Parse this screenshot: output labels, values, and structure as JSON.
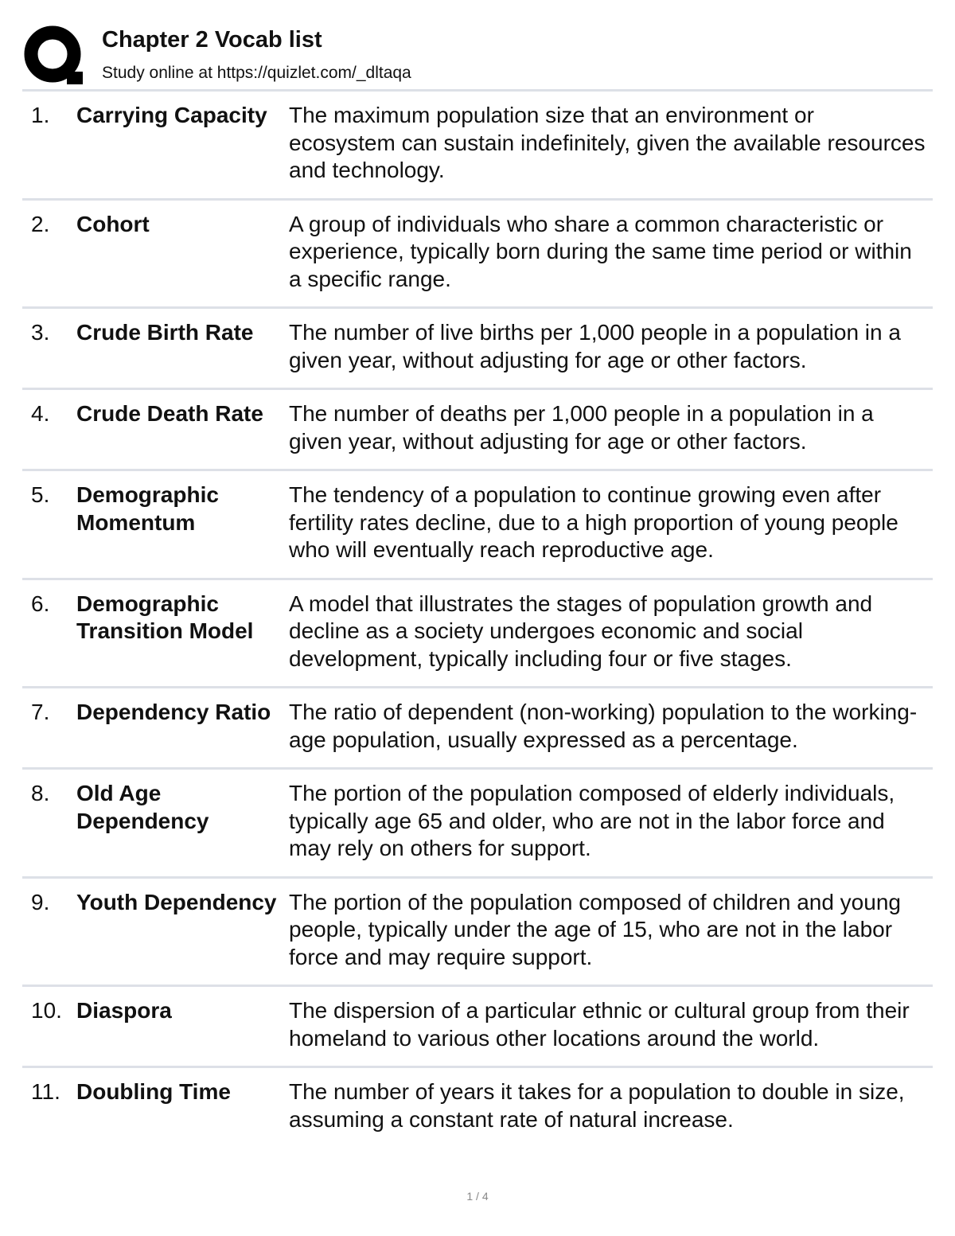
{
  "header": {
    "logo": "Q",
    "title": "Chapter 2 Vocab list",
    "subtitle": "Study online at https://quizlet.com/_dltaqa"
  },
  "terms": [
    {
      "number": "1.",
      "term": "Carrying Capacity",
      "definition": "The maximum population size that an environment or ecosystem can sustain indefinitely, given the available resources and technology."
    },
    {
      "number": "2.",
      "term": "Cohort",
      "definition": "A group of individuals who share a common characteristic or experience, typically born during the same time period or within a specific range."
    },
    {
      "number": "3.",
      "term": "Crude Birth Rate",
      "definition": "The number of live births per 1,000 people in a population in a given year, without adjusting for age or other factors."
    },
    {
      "number": "4.",
      "term": "Crude Death Rate",
      "definition": "The number of deaths per 1,000 people in a population in a given year, without adjusting for age or other factors."
    },
    {
      "number": "5.",
      "term": "Demographic Momentum",
      "definition": "The tendency of a population to continue growing even after fertility rates decline, due to a high proportion of young people who will eventually reach reproductive age."
    },
    {
      "number": "6.",
      "term": "Demographic Transition Model",
      "definition": "A model that illustrates the stages of population growth and decline as a society undergoes economic and social development, typically including four or five stages."
    },
    {
      "number": "7.",
      "term": "Dependency Ratio",
      "definition": "The ratio of dependent (non-working) population to the working-age population, usually expressed as a percentage."
    },
    {
      "number": "8.",
      "term": "Old Age Dependency",
      "definition": "The portion of the population composed of elderly individuals, typically age 65 and older, who are not in the labor force and may rely on others for support."
    },
    {
      "number": "9.",
      "term": "Youth Dependency",
      "definition": "The portion of the population composed of children and young people, typically under the age of 15, who are not in the labor force and may require support."
    },
    {
      "number": "10.",
      "term": "Diaspora",
      "definition": "The dispersion of a particular ethnic or cultural group from their homeland to various other locations around the world."
    },
    {
      "number": "11.",
      "term": "Doubling Time",
      "definition": "The number of years it takes for a population to double in size, assuming a constant rate of natural increase."
    }
  ],
  "footer": {
    "page": "1 / 4"
  }
}
